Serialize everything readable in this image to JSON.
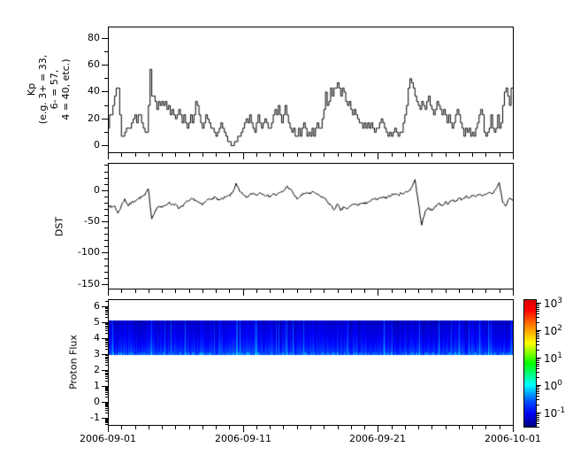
{
  "figure": {
    "background": "#ffffff",
    "line_color": "#000000",
    "flux_band_blue": "#0000ff"
  },
  "x_axis": {
    "range_days": [
      0,
      30
    ],
    "minor_tick_every_days": 1,
    "major_ticks": [
      {
        "day": 0,
        "label": "2006-09-01"
      },
      {
        "day": 10,
        "label": "2006-09-11"
      },
      {
        "day": 20,
        "label": "2006-09-21"
      },
      {
        "day": 30,
        "label": "2006-10-01"
      }
    ]
  },
  "panels": {
    "kp": {
      "ylabel_lines": [
        "Kp",
        "(e.g. 3+ = 33,",
        "6- = 57,",
        "4 = 40, etc.)"
      ],
      "yticks": [
        {
          "value": 80,
          "label": "80"
        },
        {
          "value": 60,
          "label": "60"
        },
        {
          "value": 40,
          "label": "40"
        },
        {
          "value": 20,
          "label": "20"
        },
        {
          "value": 0,
          "label": "0"
        }
      ],
      "minor_ticks": [
        10,
        30,
        50,
        70
      ]
    },
    "dst": {
      "ylabel": "DST",
      "yticks": [
        {
          "value": 0,
          "label": "0"
        },
        {
          "value": -50,
          "label": "-50"
        },
        {
          "value": -100,
          "label": "-100"
        },
        {
          "value": -150,
          "label": "-150"
        }
      ],
      "minor_tick_step": 10
    },
    "flux": {
      "ylabel": "Proton Flux",
      "yticks": [
        {
          "value": 6,
          "label": "6"
        },
        {
          "value": 5,
          "label": "5"
        },
        {
          "value": 4,
          "label": "4"
        },
        {
          "value": 3,
          "label": "3"
        },
        {
          "value": 2,
          "label": "2"
        },
        {
          "value": 1,
          "label": "1"
        },
        {
          "value": 0,
          "label": "0"
        },
        {
          "value": -1,
          "label": "-1"
        }
      ],
      "minor_tick_style": "log-decade"
    }
  },
  "colorbar": {
    "colormap": "jet",
    "scale": "log",
    "tick_exponents": [
      3,
      2,
      1,
      0,
      -1
    ],
    "tick_base": "10",
    "gradient_stops": [
      [
        "0%",
        "#000080"
      ],
      [
        "10%",
        "#0000f0"
      ],
      [
        "20%",
        "#0050ff"
      ],
      [
        "33%",
        "#00ffff"
      ],
      [
        "50%",
        "#00ff00"
      ],
      [
        "66%",
        "#ffff00"
      ],
      [
        "80%",
        "#ff8000"
      ],
      [
        "92%",
        "#ff0000"
      ],
      [
        "100%",
        "#dd0000"
      ]
    ]
  },
  "chart_data": [
    {
      "type": "line",
      "subtype": "step",
      "name": "Kp index (x10, e.g. 3+ = 33)",
      "x_start": "2006-09-01",
      "x_end": "2006-10-01",
      "x_step_days": 0.125,
      "ylim": [
        -5,
        89
      ],
      "yticks": [
        0,
        20,
        40,
        60,
        80
      ],
      "values": [
        13,
        23,
        23,
        30,
        37,
        43,
        43,
        23,
        7,
        7,
        10,
        13,
        13,
        13,
        17,
        20,
        23,
        17,
        23,
        23,
        17,
        13,
        10,
        10,
        30,
        57,
        37,
        37,
        33,
        27,
        33,
        30,
        33,
        30,
        33,
        27,
        30,
        23,
        27,
        23,
        20,
        23,
        27,
        23,
        17,
        23,
        17,
        13,
        17,
        23,
        17,
        23,
        33,
        30,
        23,
        17,
        13,
        17,
        23,
        20,
        17,
        13,
        13,
        10,
        7,
        10,
        13,
        17,
        13,
        10,
        7,
        3,
        3,
        0,
        0,
        3,
        3,
        7,
        7,
        10,
        13,
        17,
        20,
        17,
        23,
        17,
        13,
        10,
        17,
        23,
        17,
        13,
        17,
        20,
        17,
        13,
        13,
        17,
        23,
        27,
        23,
        30,
        23,
        17,
        23,
        30,
        23,
        17,
        13,
        10,
        13,
        7,
        7,
        13,
        7,
        13,
        17,
        13,
        7,
        10,
        7,
        13,
        7,
        13,
        17,
        13,
        13,
        20,
        27,
        40,
        30,
        33,
        43,
        37,
        43,
        43,
        47,
        43,
        37,
        43,
        40,
        33,
        30,
        33,
        27,
        23,
        27,
        23,
        20,
        17,
        17,
        13,
        17,
        13,
        17,
        13,
        17,
        13,
        10,
        13,
        13,
        17,
        20,
        17,
        13,
        10,
        7,
        10,
        7,
        10,
        13,
        10,
        7,
        10,
        10,
        17,
        23,
        30,
        43,
        50,
        47,
        43,
        37,
        33,
        30,
        27,
        33,
        30,
        27,
        33,
        37,
        30,
        27,
        23,
        27,
        33,
        30,
        27,
        23,
        27,
        23,
        17,
        23,
        17,
        13,
        17,
        23,
        27,
        23,
        17,
        13,
        7,
        13,
        10,
        13,
        7,
        10,
        7,
        13,
        17,
        23,
        27,
        23,
        10,
        7,
        10,
        13,
        23,
        13,
        10,
        13,
        23,
        13,
        17,
        30,
        40,
        43,
        37,
        30,
        43
      ]
    },
    {
      "type": "line",
      "name": "DST",
      "x_start": "2006-09-01",
      "x_end": "2006-10-01",
      "x_step_days": 0.25,
      "ylim": [
        -157,
        44
      ],
      "yticks": [
        0,
        -50,
        -100,
        -150
      ],
      "values": [
        -22,
        -28,
        -25,
        -37,
        -25,
        -14,
        -25,
        -20,
        -17,
        -14,
        -11,
        -8,
        2,
        -46,
        -33,
        -26,
        -28,
        -24,
        -20,
        -23,
        -22,
        -30,
        -26,
        -20,
        -18,
        -14,
        -16,
        -20,
        -24,
        -18,
        -14,
        -13,
        -12,
        -16,
        -14,
        -11,
        -9,
        -4,
        11,
        -2,
        -7,
        -12,
        -8,
        -5,
        -8,
        -4,
        -6,
        -9,
        -10,
        -6,
        -8,
        -4,
        -2,
        6,
        2,
        -6,
        -14,
        -10,
        -6,
        -4,
        -6,
        -3,
        -7,
        -10,
        -12,
        -18,
        -24,
        -32,
        -22,
        -33,
        -27,
        -30,
        -25,
        -22,
        -24,
        -21,
        -22,
        -19,
        -17,
        -14,
        -15,
        -12,
        -13,
        -10,
        -8,
        -6,
        -8,
        -5,
        -4,
        -2,
        4,
        17,
        -20,
        -56,
        -35,
        -28,
        -33,
        -26,
        -21,
        -25,
        -19,
        -22,
        -16,
        -18,
        -13,
        -15,
        -10,
        -12,
        -9,
        -11,
        -7,
        -9,
        -6,
        -4,
        -6,
        2,
        12,
        -20,
        -25,
        -13,
        -16
      ]
    },
    {
      "type": "heatmap",
      "name": "Proton Flux",
      "x_start": "2006-09-01",
      "x_end": "2006-10-01",
      "ylim": [
        -1.4,
        6.4
      ],
      "yticks": [
        -1,
        0,
        1,
        2,
        3,
        4,
        5,
        6
      ],
      "band_y_range": [
        3,
        5
      ],
      "color_scale": "log",
      "color_range_exponents": [
        -1,
        3
      ],
      "band_value_range": [
        0.05,
        0.5
      ],
      "note": "continuous low-level (blue) proton flux band between y=3 and y=5 for the whole interval"
    }
  ]
}
